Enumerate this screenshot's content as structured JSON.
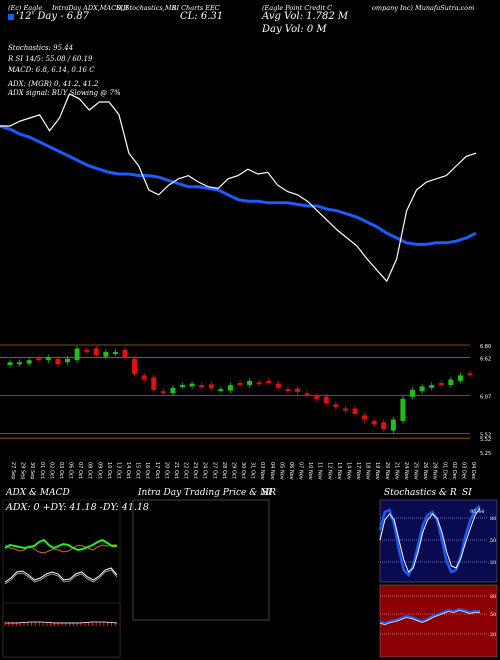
{
  "header": {
    "col1": "(Ec) Eagle",
    "col2": "IntraDay ADX,MACD,R",
    "col3": "SI,Stochastics,MR",
    "col4": "SI Charts EEC",
    "col5": "(Eagle Point Credit C",
    "col6": "ompany Inc) MunafaSutra.com",
    "day_line": "'12' Day - 6.87",
    "cl_line": "CL: 6.31",
    "avg_vol": "Avg Vol: 1.782 M",
    "day_vol": "Day Vol: 0 M"
  },
  "indicators": {
    "stochastics": "Stochastics: 95.44",
    "rsi": "R                    SI 14/5: 55.08 / 60.19",
    "macd": "MACD: 6.8, 6.14, 0.16  C",
    "adx": "ADX:                              (MGR) 0, 41.2, 41.2",
    "adx_signal": "ADX  signal:                                    BUY Slowing @ 7%"
  },
  "price_axis": {
    "labels": [
      "6.80",
      "6.62",
      "6.07",
      "5.52",
      "5.52",
      "5.25"
    ]
  },
  "dates": [
    "27 Sep",
    "29 Sep",
    "30 Sep",
    "01 Oct",
    "02 Oct",
    "03 Oct",
    "06 Oct",
    "07 Oct",
    "08 Oct",
    "09 Oct",
    "10 Oct",
    "13 Oct",
    "14 Oct",
    "15 Oct",
    "16 Oct",
    "17 Oct",
    "20 Oct",
    "21 Oct",
    "22 Oct",
    "23 Oct",
    "24 Oct",
    "27 Oct",
    "28 Oct",
    "29 Oct",
    "30 Oct",
    "31 Oct",
    "03 Nov",
    "04 Nov",
    "05 Nov",
    "06 Nov",
    "07 Nov",
    "10 Nov",
    "11 Nov",
    "12 Nov",
    "13 Nov",
    "14 Nov",
    "17 Nov",
    "18 Nov",
    "19 Nov",
    "20 Nov",
    "21 Nov",
    "24 Nov",
    "25 Nov",
    "26 Nov",
    "28 Nov",
    "01 Dec",
    "02 Dec",
    "03 Dec",
    "04 Dec"
  ],
  "panels": {
    "adx_title": "ADX  & MACD",
    "adx_values": "ADX: 0   +DY: 41.18   -DY: 41.18",
    "intraday_title": "Intra  Day Trading Price  & MR",
    "intraday_si": "SI",
    "stoch_title": "Stochastics & R",
    "stoch_si": "SI",
    "stoch_labels": [
      "80",
      "50",
      "20"
    ],
    "rsi_labels": [
      "80",
      "50",
      "20"
    ],
    "stoch_value": "95.44"
  },
  "colors": {
    "bull": "#22bb22",
    "bear": "#dd1111",
    "ema": "#1a5cff",
    "ma_dark": "#0a0a40"
  },
  "chart_data": {
    "type": "candlestick",
    "title": "",
    "ylim": [
      5.25,
      6.8
    ],
    "ema_line": [
      6.6,
      6.58,
      6.55,
      6.53,
      6.5,
      6.47,
      6.44,
      6.41,
      6.38,
      6.35,
      6.33,
      6.31,
      6.3,
      6.3,
      6.29,
      6.29,
      6.28,
      6.26,
      6.24,
      6.22,
      6.22,
      6.21,
      6.2,
      6.17,
      6.14,
      6.13,
      6.13,
      6.12,
      6.12,
      6.12,
      6.11,
      6.1,
      6.1,
      6.08,
      6.07,
      6.05,
      6.03,
      6.0,
      5.97,
      5.93,
      5.9,
      5.87,
      5.86,
      5.86,
      5.87,
      5.87,
      5.88,
      5.9,
      5.93
    ],
    "closes": [
      6.55,
      6.55,
      6.58,
      6.6,
      6.62,
      6.52,
      6.6,
      6.75,
      6.72,
      6.65,
      6.7,
      6.7,
      6.62,
      6.38,
      6.3,
      6.15,
      6.12,
      6.18,
      6.22,
      6.24,
      6.2,
      6.17,
      6.16,
      6.22,
      6.24,
      6.28,
      6.25,
      6.26,
      6.18,
      6.14,
      6.12,
      6.08,
      6.02,
      5.96,
      5.9,
      5.85,
      5.8,
      5.72,
      5.65,
      5.58,
      5.72,
      6.02,
      6.15,
      6.2,
      6.22,
      6.24,
      6.3,
      6.36,
      6.38
    ]
  }
}
